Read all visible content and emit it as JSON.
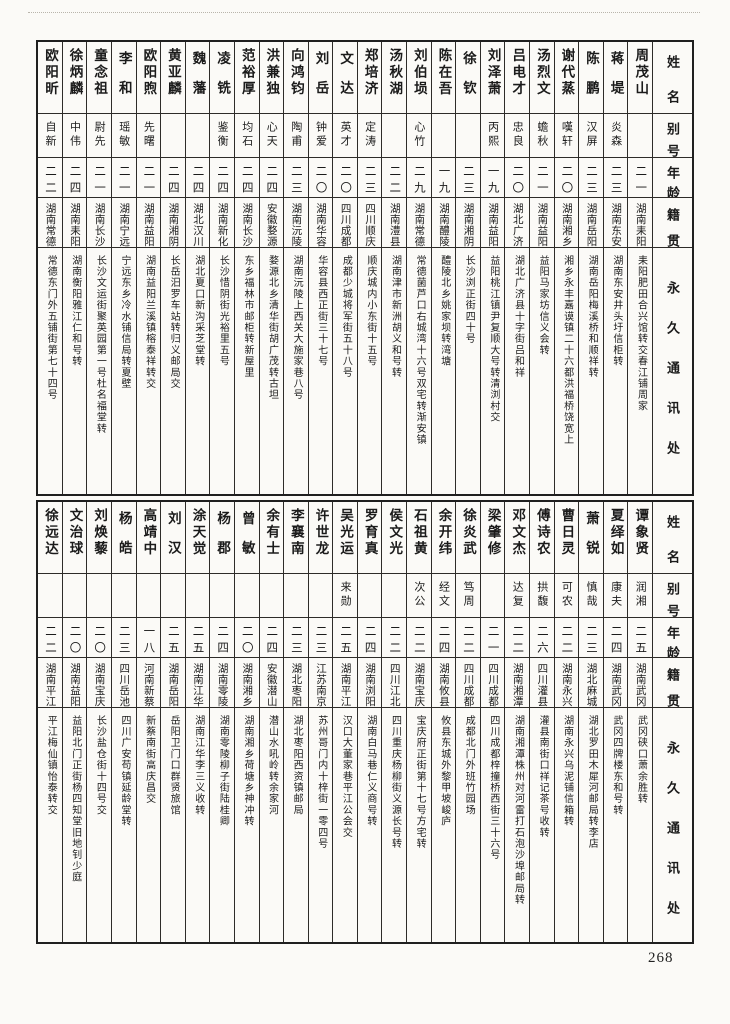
{
  "page": {
    "number": "268"
  },
  "headers": {
    "name": "姓名",
    "alias": "别号",
    "age": "年龄",
    "native": "籍贯",
    "address": "永久通讯处"
  },
  "tables": [
    {
      "entries": [
        {
          "name": "周茂山",
          "alias": "",
          "age": "二一",
          "native": "湖南耒阳",
          "address": "耒阳肥田合兴馆转交春江铺周家"
        },
        {
          "name": "蒋堤",
          "alias": "炎森",
          "age": "二三",
          "native": "湖南东安",
          "address": "湖南东安井头圩信柜转"
        },
        {
          "name": "陈鹏",
          "alias": "汉屏",
          "age": "二三",
          "native": "湖南岳阳",
          "address": "湖南岳阳梅溪桥和顺祥转"
        },
        {
          "name": "谢代蒸",
          "alias": "嘆轩",
          "age": "二〇",
          "native": "湖南湘乡",
          "address": "湘乡永丰嘉谟镇二十六都洪福桥饶宽上"
        },
        {
          "name": "汤烈文",
          "alias": "蟾秋",
          "age": "二一",
          "native": "湖南益阳",
          "address": "益阳马家坊信义会转"
        },
        {
          "name": "吕电才",
          "alias": "忠良",
          "age": "二〇",
          "native": "湖北广济",
          "address": "湖北广济县十字街吕和祥"
        },
        {
          "name": "刘泽萧",
          "alias": "丙熙",
          "age": "一九",
          "native": "湖南益阳",
          "address": "益阳桃江镇尹复顺大号转清浏村交"
        },
        {
          "name": "徐钦",
          "alias": "",
          "age": "二三",
          "native": "湖南湘阴",
          "address": "长沙浏正街四十号"
        },
        {
          "name": "陈在吾",
          "alias": "",
          "age": "一九",
          "native": "湖南醴陵",
          "address": "醴陵北乡姚家坝转湾塘"
        },
        {
          "name": "刘伯埙",
          "alias": "心竹",
          "age": "二九",
          "native": "湖南常德",
          "address": "常德菌芦口右城湾十六号双宅转渐安镇"
        },
        {
          "name": "汤秋湖",
          "alias": "",
          "age": "二二",
          "native": "湖南澧县",
          "address": "湖南津市新洲胡义和号转"
        },
        {
          "name": "郑培济",
          "alias": "定涛",
          "age": "二三",
          "native": "四川顺庆",
          "address": "顺庆城内小东街十五号"
        },
        {
          "name": "文达",
          "alias": "英才",
          "age": "二〇",
          "native": "四川成都",
          "address": "成都少城将军街五十八号"
        },
        {
          "name": "刘岳",
          "alias": "钟爱",
          "age": "二〇",
          "native": "湖南华容",
          "address": "华容县西正街三十七号"
        },
        {
          "name": "向鸿钧",
          "alias": "陶甫",
          "age": "二三",
          "native": "湖南沅陵",
          "address": "湖南沅陵上西关大施家巷八号"
        },
        {
          "name": "洪兼独",
          "alias": "心天",
          "age": "二四",
          "native": "安徽婺源",
          "address": "婺源北乡清华街胡广茂转古坦"
        },
        {
          "name": "范裕厚",
          "alias": "均石",
          "age": "二四",
          "native": "湖南长沙",
          "address": "东乡福林市邮柜转新屋里"
        },
        {
          "name": "凌铣",
          "alias": "鉴衡",
          "age": "二四",
          "native": "湖南新化",
          "address": "长沙惜阴街光裕里五号"
        },
        {
          "name": "魏藩",
          "alias": "",
          "age": "二四",
          "native": "湖北汉川",
          "address": "湖北夏口新沟采芝堂转"
        },
        {
          "name": "黄亚麟",
          "alias": "",
          "age": "二四",
          "native": "湖南湘阴",
          "address": "长岳汨罗车站转归义邮局交"
        },
        {
          "name": "欧阳煦",
          "alias": "先曙",
          "age": "二一",
          "native": "湖南益阳",
          "address": "湖南益阳兰溪镇榕泰祥转交"
        },
        {
          "name": "李和",
          "alias": "瑶敏",
          "age": "二一",
          "native": "湖南宁远",
          "address": "宁远东乡冷水铺信局转夏壁"
        },
        {
          "name": "童念祖",
          "alias": "尉先",
          "age": "二一",
          "native": "湖南长沙",
          "address": "长沙文运街聚英园第一号杜名福堂转"
        },
        {
          "name": "徐炳麟",
          "alias": "中伟",
          "age": "二四",
          "native": "湖南耒阳",
          "address": "湖南衡阳雅江仁和号转"
        },
        {
          "name": "欧阳昕",
          "alias": "自新",
          "age": "二二",
          "native": "湖南常德",
          "address": "常德东门外五铺街第七十四号"
        }
      ]
    },
    {
      "entries": [
        {
          "name": "谭象贤",
          "alias": "润湘",
          "age": "二五",
          "native": "湖南武冈",
          "address": "武冈硖口萧余胜转"
        },
        {
          "name": "夏绎如",
          "alias": "康夫",
          "age": "二四",
          "native": "湖南武冈",
          "address": "武冈四牌楼东和号转"
        },
        {
          "name": "萧锐",
          "alias": "慎哉",
          "age": "二三",
          "native": "湖北麻城",
          "address": "湖北罗田木犀河邮局转李店"
        },
        {
          "name": "曹日灵",
          "alias": "可农",
          "age": "二二",
          "native": "湖南永兴",
          "address": "湖南永兴乌泥铺信箱转"
        },
        {
          "name": "傅诗农",
          "alias": "拱馥",
          "age": "二六",
          "native": "四川灌县",
          "address": "灌县南街口祥记茶号收转"
        },
        {
          "name": "邓文杰",
          "alias": "达复",
          "age": "二二",
          "native": "湖南湘潭",
          "address": "湖南湘潭株州对河雷打石泡沙埠邮局转"
        },
        {
          "name": "梁肇修",
          "alias": "",
          "age": "二一",
          "native": "四川成都",
          "address": "四川成都梓撞桥西街三十六号"
        },
        {
          "name": "徐炎武",
          "alias": "笃周",
          "age": "二二",
          "native": "四川成都",
          "address": "成都北门外班竹园场"
        },
        {
          "name": "余开纬",
          "alias": "经文",
          "age": "二四",
          "native": "湖南攸县",
          "address": "攸县东城外黎甲坡峻庐"
        },
        {
          "name": "石祖黄",
          "alias": "次公",
          "age": "二二",
          "native": "湖南宝庆",
          "address": "宝庆府正街第十七号方宅转"
        },
        {
          "name": "侯文光",
          "alias": "",
          "age": "二二",
          "native": "四川江北",
          "address": "四川重庆杨柳街义源长号转"
        },
        {
          "name": "罗育真",
          "alias": "",
          "age": "二四",
          "native": "湖南浏阳",
          "address": "湖南白马巷仁义商号转"
        },
        {
          "name": "吴光运",
          "alias": "来勋",
          "age": "二五",
          "native": "湖南平江",
          "address": "汉口大董家巷平江公会交"
        },
        {
          "name": "许世龙",
          "alias": "",
          "age": "二三",
          "native": "江苏南京",
          "address": "苏州哥门内十梓街一零四号"
        },
        {
          "name": "李襄南",
          "alias": "",
          "age": "二三",
          "native": "湖北枣阳",
          "address": "湖北枣阳西资镇邮局"
        },
        {
          "name": "余有士",
          "alias": "",
          "age": "二四",
          "native": "安徽潜山",
          "address": "潜山水吼岭转余家河"
        },
        {
          "name": "曾敏",
          "alias": "",
          "age": "二〇",
          "native": "湖南湘乡",
          "address": "湖南湘乡荷塘乡神冲转"
        },
        {
          "name": "杨郡",
          "alias": "",
          "age": "二四",
          "native": "湖南零陵",
          "address": "湖南零陵柳子街陆桂卿"
        },
        {
          "name": "涂天觉",
          "alias": "",
          "age": "二五",
          "native": "湖南江华",
          "address": "湖南江华李三义收转"
        },
        {
          "name": "刘汉",
          "alias": "",
          "age": "二五",
          "native": "湖南岳阳",
          "address": "岳阳卫门口群贤旅馆"
        },
        {
          "name": "高靖中",
          "alias": "",
          "age": "一八",
          "native": "河南新蔡",
          "address": "新蔡南街高庆昌交"
        },
        {
          "name": "杨皓",
          "alias": "",
          "age": "二三",
          "native": "四川岳池",
          "address": "四川广安苟镇延龄堂转"
        },
        {
          "name": "刘焕藜",
          "alias": "",
          "age": "二〇",
          "native": "湖南宝庆",
          "address": "长沙盐仓街十四号交"
        },
        {
          "name": "文治球",
          "alias": "",
          "age": "二〇",
          "native": "湖南益阳",
          "address": "益阳北门正街杨四知堂旧地钊少庭"
        },
        {
          "name": "徐远达",
          "alias": "",
          "age": "二二",
          "native": "湖南平江",
          "address": "平江梅仙镇怡泰转交"
        }
      ]
    }
  ]
}
